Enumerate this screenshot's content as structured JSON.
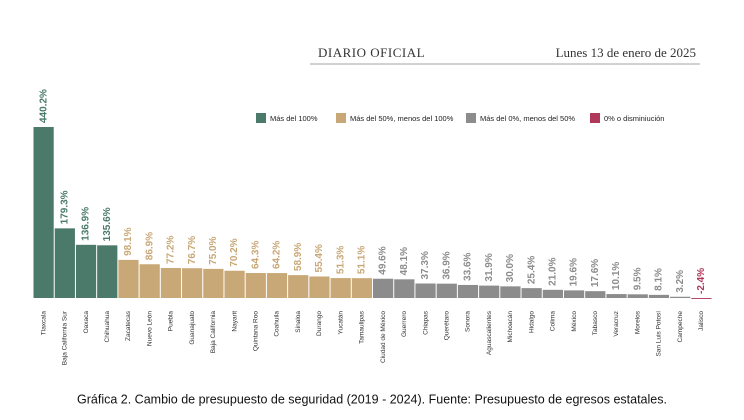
{
  "header": {
    "left": "DIARIO OFICIAL",
    "right": "Lunes 13 de enero de 2025"
  },
  "chart_data": {
    "type": "bar",
    "legend": [
      {
        "name": "Más del 100%",
        "color": "#4b7a6b"
      },
      {
        "name": "Más del 50%, menos del 100%",
        "color": "#c9a877"
      },
      {
        "name": "Más del 0%, menos del 50%",
        "color": "#8c8c8c"
      },
      {
        "name": "0% o disminiución",
        "color": "#b0385a"
      }
    ],
    "categories": [
      "Tlaxcala",
      "Baja California Sur",
      "Oaxaca",
      "Chihuahua",
      "Zacatecas",
      "Nuevo León",
      "Puebla",
      "Guanajuato",
      "Baja California",
      "Nayarit",
      "Quintana Roo",
      "Coahuila",
      "Sinaloa",
      "Durango",
      "Yucatán",
      "Tamaulipas",
      "Ciudad de México",
      "Guerrero",
      "Chiapas",
      "Querétaro",
      "Sonora",
      "Aguascalientes",
      "Michoacán",
      "Hidalgo",
      "Colima",
      "México",
      "Tabasco",
      "Veracruz",
      "Morelos",
      "San Luis Potosí",
      "Campeche",
      "Jalisco"
    ],
    "values": [
      440.2,
      179.3,
      136.9,
      135.6,
      98.1,
      86.9,
      77.2,
      76.7,
      75.0,
      70.2,
      64.3,
      64.2,
      58.9,
      55.4,
      51.3,
      51.1,
      49.6,
      48.1,
      37.3,
      36.9,
      33.6,
      31.9,
      30.0,
      25.4,
      21.0,
      19.6,
      17.6,
      10.1,
      9.5,
      8.1,
      3.2,
      -2.4
    ],
    "value_labels": [
      "440.2%",
      "179.3%",
      "136.9%",
      "135.6%",
      "98.1%",
      "86.9%",
      "77.2%",
      "76.7%",
      "75.0%",
      "70.2%",
      "64.3%",
      "64.2%",
      "58.9%",
      "55.4%",
      "51.3%",
      "51.1%",
      "49.6%",
      "48.1%",
      "37.3%",
      "36.9%",
      "33.6%",
      "31.9%",
      "30.0%",
      "25.4%",
      "21.0%",
      "19.6%",
      "17.6%",
      "10.1%",
      "9.5%",
      "8.1%",
      "3.2%",
      "-2.4%"
    ],
    "colors": [
      "#4b7a6b",
      "#4b7a6b",
      "#4b7a6b",
      "#4b7a6b",
      "#c9a877",
      "#c9a877",
      "#c9a877",
      "#c9a877",
      "#c9a877",
      "#c9a877",
      "#c9a877",
      "#c9a877",
      "#c9a877",
      "#c9a877",
      "#c9a877",
      "#c9a877",
      "#8c8c8c",
      "#8c8c8c",
      "#8c8c8c",
      "#8c8c8c",
      "#8c8c8c",
      "#8c8c8c",
      "#8c8c8c",
      "#8c8c8c",
      "#8c8c8c",
      "#8c8c8c",
      "#8c8c8c",
      "#8c8c8c",
      "#8c8c8c",
      "#8c8c8c",
      "#8c8c8c",
      "#b0385a"
    ],
    "caption": "Gráfica 2. Cambio de presupuesto de seguridad (2019 - 2024). Fuente: Presupuesto de egresos estatales."
  }
}
